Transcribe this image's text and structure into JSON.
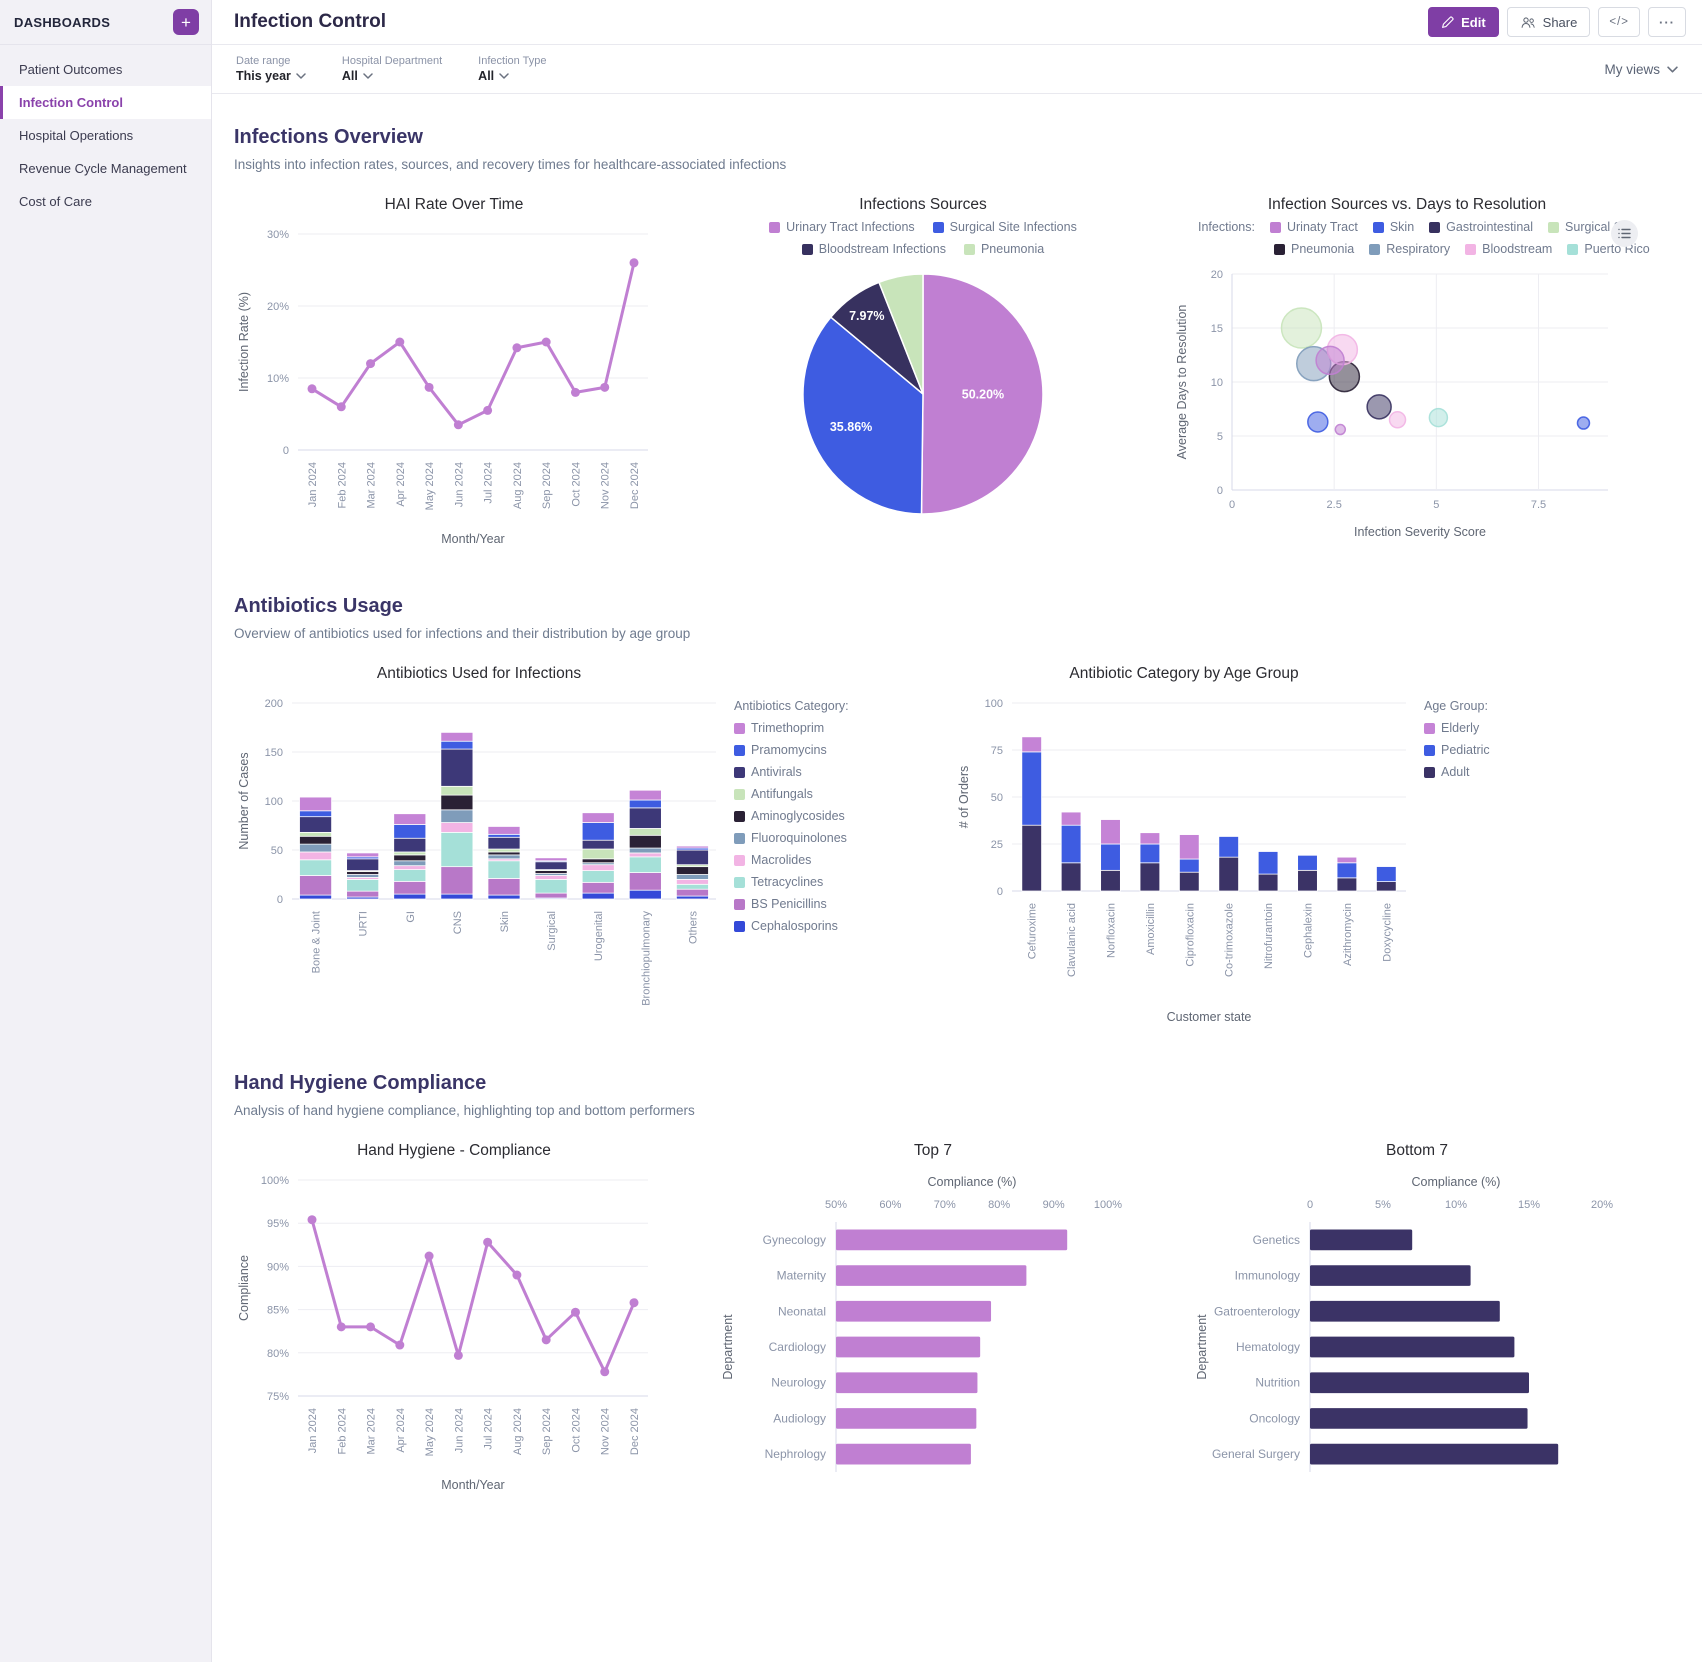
{
  "sidebar": {
    "title": "DASHBOARDS",
    "add_label": "+",
    "items": [
      {
        "label": "Patient Outcomes",
        "active": false
      },
      {
        "label": "Infection Control",
        "active": true
      },
      {
        "label": "Hospital Operations",
        "active": false
      },
      {
        "label": "Revenue Cycle Management",
        "active": false
      },
      {
        "label": "Cost of Care",
        "active": false
      }
    ]
  },
  "header": {
    "title": "Infection Control",
    "edit_label": "Edit",
    "share_label": "Share",
    "code_label": "</>",
    "more_label": "···"
  },
  "filters": {
    "items": [
      {
        "label": "Date range",
        "value": "This year"
      },
      {
        "label": "Hospital Department",
        "value": "All"
      },
      {
        "label": "Infection Type",
        "value": "All"
      }
    ],
    "views_label": "My views"
  },
  "sections": [
    {
      "title": "Infections Overview",
      "subtitle": "Insights into infection rates, sources, and recovery times for healthcare-associated infections"
    },
    {
      "title": "Antibiotics Usage",
      "subtitle": "Overview of antibiotics used for infections and their distribution by age group"
    },
    {
      "title": "Hand Hygiene Compliance",
      "subtitle": "Analysis of hand hygiene compliance, highlighting top and bottom performers"
    }
  ],
  "chart_data": [
    {
      "id": "hai-rate",
      "type": "line",
      "title": "HAI Rate Over Time",
      "xlabel": "Month/Year",
      "ylabel": "Infection Rate (%)",
      "x": [
        "Jan 2024",
        "Feb 2024",
        "Mar 2024",
        "Apr 2024",
        "May 2024",
        "Jun 2024",
        "Jul 2024",
        "Aug 2024",
        "Sep 2024",
        "Oct 2024",
        "Nov 2024",
        "Dec 2024"
      ],
      "values": [
        8.5,
        6,
        12,
        15,
        8.7,
        3.5,
        5.5,
        14.2,
        15,
        8,
        8.7,
        26
      ],
      "ylim": [
        0,
        30
      ],
      "yticks": [
        0,
        10,
        20,
        30
      ],
      "ysuffix": "%",
      "color": "#c07fd2"
    },
    {
      "id": "infections-sources",
      "type": "pie",
      "title": "Infections Sources",
      "slices": [
        {
          "label": "Urinary Tract Infections",
          "value": 50.2,
          "label_text": "50.20%",
          "show_label": true,
          "color": "#c07fd2"
        },
        {
          "label": "Surgical Site Infections",
          "value": 35.86,
          "label_text": "35.86%",
          "show_label": true,
          "color": "#3e5ce1"
        },
        {
          "label": "Bloodstream Infections",
          "value": 7.97,
          "label_text": "7.97%",
          "show_label": true,
          "color": "#37315f"
        },
        {
          "label": "Pneumonia",
          "value": 5.97,
          "label_text": "",
          "show_label": false,
          "color": "#c8e4ba"
        }
      ]
    },
    {
      "id": "sources-resolution",
      "type": "scatter",
      "title": "Infection Sources vs. Days to Resolution",
      "legend_title": "Infections:",
      "xlabel": "Infection Severity Score",
      "ylabel": "Average Days to Resolution",
      "xlim": [
        0,
        9.2
      ],
      "xticks": [
        0,
        2.5,
        5,
        7.5
      ],
      "ylim": [
        0,
        20
      ],
      "yticks": [
        0,
        5,
        10,
        15,
        20
      ],
      "series": [
        {
          "name": "Urinaty Tract",
          "color": "#c07fd2",
          "points": [
            {
              "x": 2.4,
              "y": 12,
              "r": 14
            },
            {
              "x": 2.65,
              "y": 5.6,
              "r": 5
            }
          ]
        },
        {
          "name": "Skin",
          "color": "#3e5ce1",
          "points": [
            {
              "x": 2.1,
              "y": 6.3,
              "r": 10
            },
            {
              "x": 8.6,
              "y": 6.2,
              "r": 6
            }
          ]
        },
        {
          "name": "Gastrointestinal",
          "color": "#37315f",
          "points": [
            {
              "x": 3.6,
              "y": 7.7,
              "r": 12
            }
          ]
        },
        {
          "name": "Surgical Site",
          "color": "#c8e4ba",
          "points": [
            {
              "x": 1.7,
              "y": 15,
              "r": 20
            }
          ]
        },
        {
          "name": "Pneumonia",
          "color": "#2a2135",
          "points": [
            {
              "x": 2.75,
              "y": 10.5,
              "r": 15
            }
          ]
        },
        {
          "name": "Respiratory",
          "color": "#7f9cba",
          "points": [
            {
              "x": 2.0,
              "y": 11.7,
              "r": 17
            }
          ]
        },
        {
          "name": "Bloodstream",
          "color": "#f2b4e4",
          "points": [
            {
              "x": 2.7,
              "y": 13,
              "r": 15
            },
            {
              "x": 4.05,
              "y": 6.5,
              "r": 8
            }
          ]
        },
        {
          "name": "Puerto Rico",
          "color": "#a5e0d8",
          "points": [
            {
              "x": 5.05,
              "y": 6.7,
              "r": 9
            }
          ]
        }
      ]
    },
    {
      "id": "antibiotics-used",
      "type": "stacked_bar",
      "title": "Antibiotics Used for Infections",
      "ylabel": "Number of Cases",
      "legend_title": "Antibiotics Category:",
      "ylim": [
        0,
        200
      ],
      "yticks": [
        0,
        50,
        100,
        150,
        200
      ],
      "categories": [
        "Bone & Joint",
        "URTI",
        "GI",
        "CNS",
        "Skin",
        "Surgical",
        "Urogenital",
        "Bronchiopulmonary",
        "Others"
      ],
      "series": [
        {
          "name": "Trimethoprim",
          "color": "#c583d6",
          "values": [
            14,
            4,
            11,
            9,
            8,
            3,
            10,
            10,
            2
          ]
        },
        {
          "name": "Pramomycins",
          "color": "#3e5ce1",
          "values": [
            6,
            2,
            14,
            8,
            3,
            1,
            18,
            8,
            2
          ]
        },
        {
          "name": "Antivirals",
          "color": "#3d3878",
          "values": [
            16,
            12,
            14,
            38,
            12,
            8,
            9,
            21,
            15
          ]
        },
        {
          "name": "Antifungals",
          "color": "#c8e4ba",
          "values": [
            4,
            1,
            3,
            9,
            3,
            1,
            10,
            7,
            2
          ]
        },
        {
          "name": "Aminoglycosides",
          "color": "#2a2135",
          "values": [
            8,
            3,
            6,
            15,
            3,
            3,
            4,
            13,
            8
          ]
        },
        {
          "name": "Fluoroquinolones",
          "color": "#7f9cba",
          "values": [
            8,
            3,
            5,
            13,
            4,
            2,
            2,
            5,
            5
          ]
        },
        {
          "name": "Macrolides",
          "color": "#f2b4e4",
          "values": [
            8,
            2,
            4,
            10,
            2,
            4,
            6,
            4,
            5
          ]
        },
        {
          "name": "Tetracyclines",
          "color": "#a5e0d8",
          "values": [
            16,
            12,
            12,
            35,
            18,
            14,
            12,
            16,
            5
          ]
        },
        {
          "name": "BS Penicillins",
          "color": "#b878c8",
          "values": [
            20,
            6,
            13,
            28,
            17,
            5,
            11,
            18,
            7
          ]
        },
        {
          "name": "Cephalosporins",
          "color": "#3449d8",
          "values": [
            4,
            2,
            5,
            5,
            4,
            1,
            6,
            9,
            3
          ]
        }
      ]
    },
    {
      "id": "antibiotic-age",
      "type": "stacked_bar",
      "title": "Antibiotic Category by Age Group",
      "ylabel": "# of Orders",
      "xlabel": "Customer state",
      "legend_title": "Age Group:",
      "ylim": [
        0,
        100
      ],
      "yticks": [
        0,
        25,
        50,
        75,
        100
      ],
      "categories": [
        "Cefuroxime",
        "Clavulanic acid",
        "Norfloxacin",
        "Amoxicillin",
        "Ciprofloxacin",
        "Co-trimoxazole",
        "Nitrofurantoin",
        "Cephalexin",
        "Azithromycin",
        "Doxycycline"
      ],
      "series": [
        {
          "name": "Elderly",
          "color": "#c583d6",
          "values": [
            8,
            7,
            13,
            6,
            13,
            0,
            0,
            0,
            3,
            0
          ]
        },
        {
          "name": "Pediatric",
          "color": "#3e5ce1",
          "values": [
            39,
            20,
            14,
            10,
            7,
            11,
            12,
            8,
            8,
            8
          ]
        },
        {
          "name": "Adult",
          "color": "#3b3366",
          "values": [
            35,
            15,
            11,
            15,
            10,
            18,
            9,
            11,
            7,
            5
          ]
        }
      ]
    },
    {
      "id": "hand-hygiene",
      "type": "line",
      "title": "Hand Hygiene - Compliance",
      "xlabel": "Month/Year",
      "ylabel": "Compliance",
      "x": [
        "Jan 2024",
        "Feb 2024",
        "Mar 2024",
        "Apr 2024",
        "May 2024",
        "Jun 2024",
        "Jul 2024",
        "Aug 2024",
        "Sep 2024",
        "Oct 2024",
        "Nov 2024",
        "Dec 2024"
      ],
      "values": [
        95.4,
        83,
        83,
        80.9,
        91.2,
        79.7,
        92.8,
        89,
        81.5,
        84.7,
        77.8,
        85.8
      ],
      "ylim": [
        75,
        100
      ],
      "yticks": [
        75,
        80,
        85,
        90,
        95,
        100
      ],
      "ysuffix": "%",
      "color": "#c07fd2"
    },
    {
      "id": "top7",
      "type": "hbar",
      "title": "Top 7",
      "xlabel": "Compliance (%)",
      "ylabel": "Department",
      "xlim": [
        50,
        100
      ],
      "xticks": [
        {
          "v": 50,
          "t": "50%"
        },
        {
          "v": 60,
          "t": "60%"
        },
        {
          "v": 70,
          "t": "70%"
        },
        {
          "v": 80,
          "t": "80%"
        },
        {
          "v": 90,
          "t": "90%"
        },
        {
          "v": 100,
          "t": "100%"
        }
      ],
      "categories": [
        "Gynecology",
        "Maternity",
        "Neonatal",
        "Cardiology",
        "Neurology",
        "Audiology",
        "Nephrology"
      ],
      "values": [
        92.5,
        85,
        78.5,
        76.5,
        76,
        75.8,
        74.8
      ],
      "color": "#c07fd2"
    },
    {
      "id": "bottom7",
      "type": "hbar",
      "title": "Bottom 7",
      "xlabel": "Compliance (%)",
      "ylabel": "Department",
      "xlim": [
        0,
        20
      ],
      "xticks": [
        {
          "v": 0,
          "t": "0"
        },
        {
          "v": 5,
          "t": "5%"
        },
        {
          "v": 10,
          "t": "10%"
        },
        {
          "v": 15,
          "t": "15%"
        },
        {
          "v": 20,
          "t": "20%"
        }
      ],
      "categories": [
        "Genetics",
        "Immunology",
        "Gatroenterology",
        "Hematology",
        "Nutrition",
        "Oncology",
        "General Surgery"
      ],
      "values": [
        7,
        11,
        13,
        14,
        15,
        14.9,
        17
      ],
      "color": "#3b3366"
    }
  ]
}
